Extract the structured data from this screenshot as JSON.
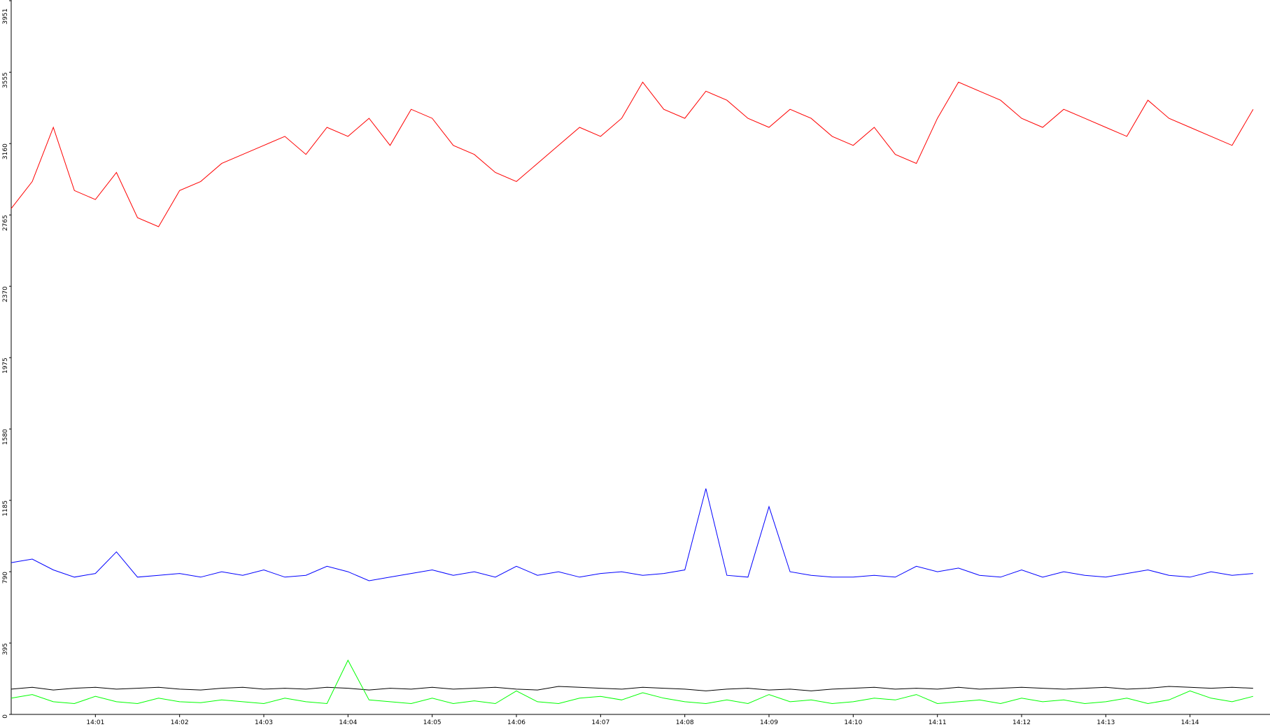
{
  "chart_data": {
    "type": "line",
    "xlim": [
      0,
      14.95
    ],
    "xticks": [
      {
        "value": 1,
        "label": "14:01"
      },
      {
        "value": 2,
        "label": "14:02"
      },
      {
        "value": 3,
        "label": "14:03"
      },
      {
        "value": 4,
        "label": "14:04"
      },
      {
        "value": 5,
        "label": "14:05"
      },
      {
        "value": 6,
        "label": "14:06"
      },
      {
        "value": 7,
        "label": "14:07"
      },
      {
        "value": 8,
        "label": "14:08"
      },
      {
        "value": 9,
        "label": "14:09"
      },
      {
        "value": 10,
        "label": "14:10"
      },
      {
        "value": 11,
        "label": "14:11"
      },
      {
        "value": 12,
        "label": "14:12"
      },
      {
        "value": 13,
        "label": "14:13"
      },
      {
        "value": 14,
        "label": "14:14"
      }
    ],
    "ylim": [
      0,
      3951
    ],
    "yticks": [
      0,
      395,
      790,
      1185,
      1580,
      1975,
      2370,
      2765,
      3160,
      3555,
      3951
    ],
    "x": [
      0,
      0.25,
      0.5,
      0.75,
      1,
      1.25,
      1.5,
      1.75,
      2,
      2.25,
      2.5,
      2.75,
      3,
      3.25,
      3.5,
      3.75,
      4,
      4.25,
      4.5,
      4.75,
      5,
      5.25,
      5.5,
      5.75,
      6,
      6.25,
      6.5,
      6.75,
      7,
      7.25,
      7.5,
      7.75,
      8,
      8.25,
      8.5,
      8.75,
      9,
      9.25,
      9.5,
      9.75,
      10,
      10.25,
      10.5,
      10.75,
      11,
      11.25,
      11.5,
      11.75,
      12,
      12.25,
      12.5,
      12.75,
      13,
      13.25,
      13.5,
      13.75,
      14,
      14.25,
      14.5,
      14.75
    ],
    "series": [
      {
        "color": "#ff0000",
        "values": [
          2800,
          2950,
          3250,
          2900,
          2850,
          3000,
          2750,
          2700,
          2900,
          2950,
          3050,
          3100,
          3150,
          3200,
          3100,
          3250,
          3200,
          3300,
          3150,
          3350,
          3300,
          3150,
          3100,
          3000,
          2950,
          3050,
          3150,
          3250,
          3200,
          3300,
          3500,
          3350,
          3300,
          3450,
          3400,
          3300,
          3250,
          3350,
          3300,
          3200,
          3150,
          3250,
          3100,
          3050,
          3300,
          3500,
          3450,
          3400,
          3300,
          3250,
          3350,
          3300,
          3250,
          3200,
          3400,
          3300,
          3250,
          3200,
          3150,
          3350
        ]
      },
      {
        "color": "#0000ff",
        "values": [
          840,
          860,
          800,
          760,
          780,
          900,
          760,
          770,
          780,
          760,
          790,
          770,
          800,
          760,
          770,
          820,
          790,
          740,
          760,
          780,
          800,
          770,
          790,
          760,
          820,
          770,
          790,
          760,
          780,
          790,
          770,
          780,
          800,
          1250,
          770,
          760,
          1150,
          790,
          770,
          760,
          760,
          770,
          760,
          820,
          790,
          810,
          770,
          760,
          800,
          760,
          790,
          770,
          760,
          780,
          800,
          770,
          760,
          790,
          770,
          780
        ]
      },
      {
        "color": "#000000",
        "values": [
          140,
          150,
          135,
          145,
          150,
          140,
          145,
          150,
          140,
          135,
          145,
          150,
          140,
          145,
          140,
          150,
          145,
          135,
          145,
          140,
          150,
          140,
          145,
          150,
          140,
          135,
          155,
          150,
          145,
          140,
          150,
          145,
          140,
          130,
          140,
          145,
          135,
          140,
          130,
          140,
          145,
          150,
          140,
          145,
          140,
          150,
          140,
          145,
          150,
          145,
          140,
          145,
          150,
          140,
          145,
          155,
          150,
          145,
          150,
          145
        ]
      },
      {
        "color": "#00ff00",
        "values": [
          90,
          110,
          70,
          60,
          100,
          70,
          60,
          90,
          70,
          65,
          80,
          70,
          60,
          90,
          70,
          60,
          300,
          80,
          70,
          60,
          90,
          60,
          75,
          60,
          130,
          70,
          60,
          90,
          100,
          80,
          120,
          90,
          70,
          60,
          80,
          60,
          110,
          70,
          80,
          60,
          70,
          90,
          80,
          110,
          60,
          70,
          80,
          60,
          90,
          70,
          80,
          60,
          70,
          90,
          60,
          80,
          130,
          90,
          70,
          100
        ]
      }
    ]
  }
}
